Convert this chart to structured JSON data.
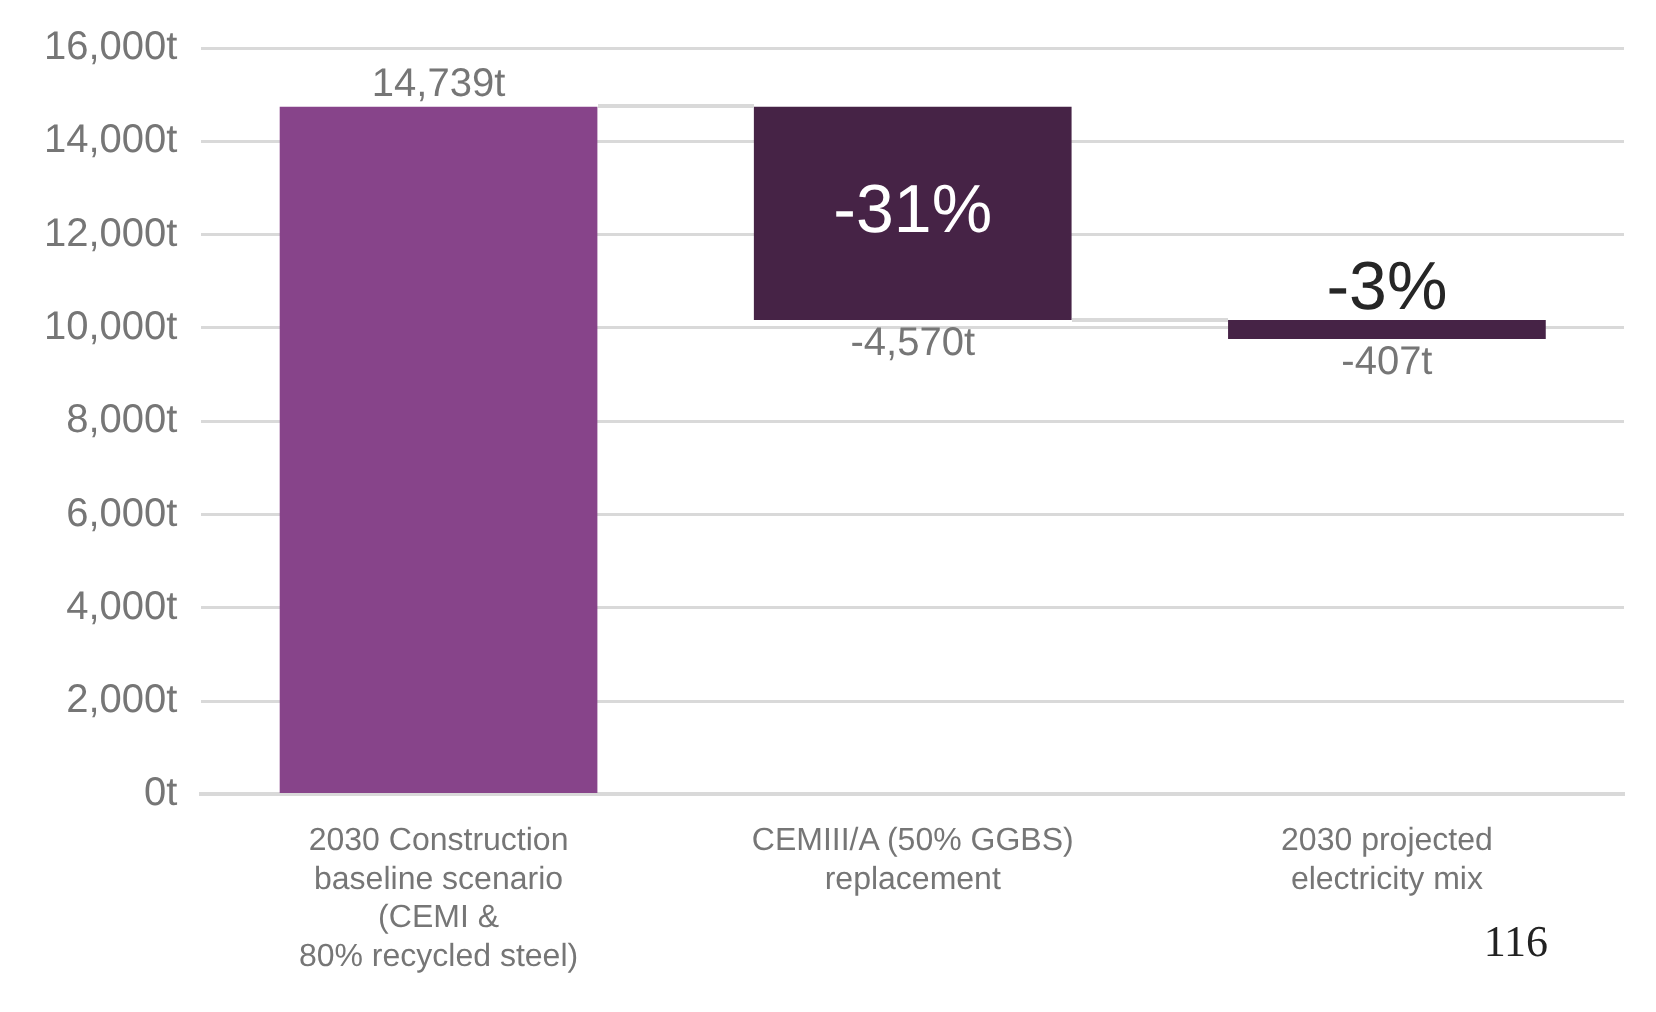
{
  "chart_data": {
    "type": "bar",
    "categories": [
      "2030 Construction\nbaseline scenario\n(CEMI &\n80% recycled steel)",
      "CEMIII/A (50% GGBS)\nreplacement",
      "2030 projected\nelectricity mix"
    ],
    "values": [
      14739,
      -4570,
      -407
    ],
    "base": [
      0,
      14739,
      10169
    ],
    "colors": [
      "#87448a",
      "#462346",
      "#462346"
    ],
    "value_labels": [
      "14,739t",
      "-4,570t",
      "-407t"
    ],
    "ylim": [
      0,
      16000
    ],
    "yticks": [
      {
        "value": 0,
        "label": "0t"
      },
      {
        "value": 2000,
        "label": "2,000t"
      },
      {
        "value": 4000,
        "label": "4,000t"
      },
      {
        "value": 6000,
        "label": "6,000t"
      },
      {
        "value": 8000,
        "label": "8,000t"
      },
      {
        "value": 10000,
        "label": "10,000t"
      },
      {
        "value": 12000,
        "label": "12,000t"
      },
      {
        "value": 14000,
        "label": "14,000t"
      },
      {
        "value": 16000,
        "label": "16,000t"
      }
    ],
    "grid": "y",
    "annotations": [
      "-31%",
      "-3%",
      "116"
    ]
  }
}
